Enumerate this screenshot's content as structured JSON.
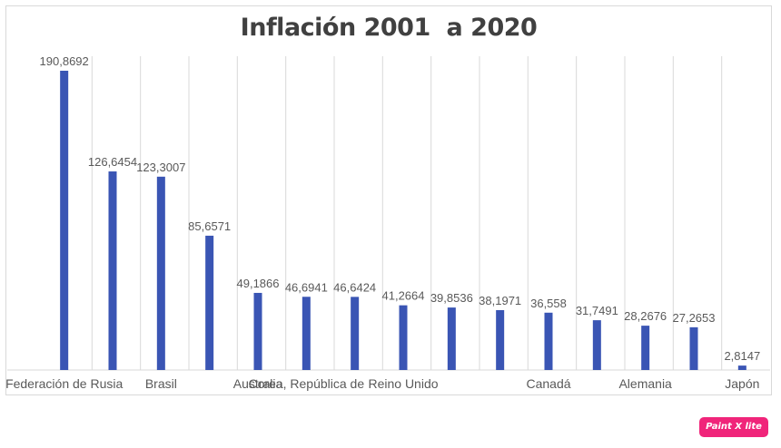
{
  "chart_data": {
    "type": "bar",
    "title": "Inflación 2001  a 2020",
    "xlabel": "",
    "ylabel": "",
    "ylim": [
      0,
      200
    ],
    "grid": "vertical",
    "categories": [
      "Federación de Rusia",
      "",
      "Brasil",
      "",
      "Australia",
      "Corea, República de",
      "",
      "Reino Unido",
      "",
      "",
      "Canadá",
      "",
      "Alemania",
      "",
      "Japón"
    ],
    "values": [
      190.8692,
      126.6454,
      123.3007,
      85.6571,
      49.1866,
      46.6941,
      46.6424,
      41.2664,
      39.8536,
      38.1971,
      36.558,
      31.7491,
      28.2676,
      27.2653,
      2.8147
    ],
    "value_labels": [
      "190,8692",
      "126,6454",
      "123,3007",
      "85,6571",
      "49,1866",
      "46,6941",
      "46,6424",
      "41,2664",
      "39,8536",
      "38,1971",
      "36,558",
      "31,7491",
      "28,2676",
      "27,2653",
      "2,8147"
    ],
    "bar_color": "#3a55b4",
    "grid_color": "#d9d9d9"
  },
  "badge": {
    "text": "Paint X lite",
    "color": "#f0257a"
  }
}
